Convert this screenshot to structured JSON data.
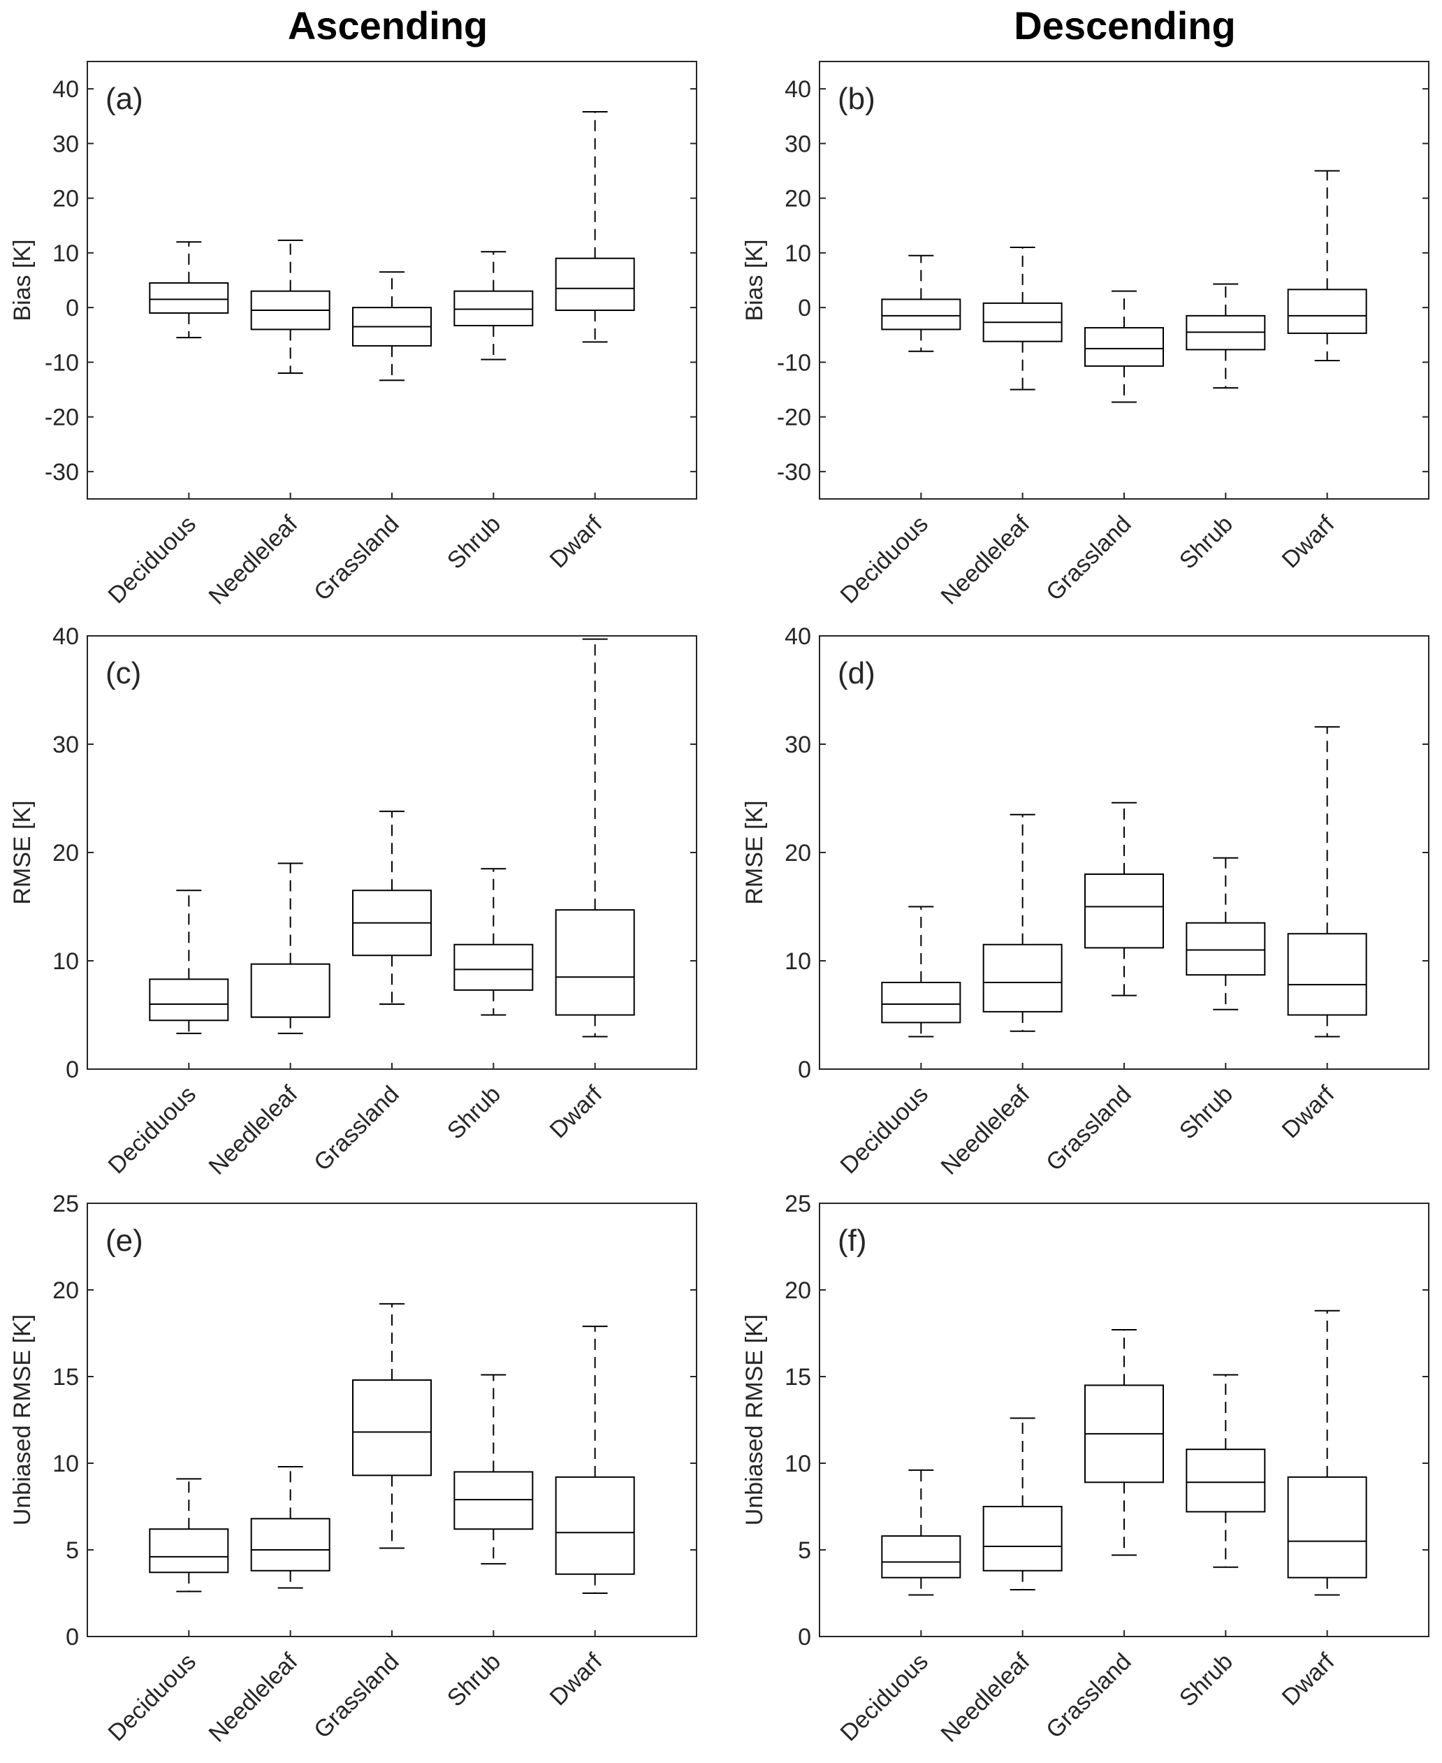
{
  "column_titles": [
    "Ascending",
    "Descending"
  ],
  "chart_data": [
    {
      "type": "boxplot",
      "panel": "(a)",
      "column": "Ascending",
      "ylabel": "Bias [K]",
      "ylim": [
        -35,
        45
      ],
      "yticks": [
        -30,
        -20,
        -10,
        0,
        10,
        20,
        30,
        40
      ],
      "categories": [
        "Deciduous",
        "Needleleaf",
        "Grassland",
        "Shrub",
        "Dwarf"
      ],
      "boxes": [
        {
          "whisker_low": -5.5,
          "q1": -1,
          "median": 1.5,
          "q3": 4.5,
          "whisker_high": 12
        },
        {
          "whisker_low": -12,
          "q1": -4,
          "median": -0.5,
          "q3": 3,
          "whisker_high": 12.3
        },
        {
          "whisker_low": -13.3,
          "q1": -7,
          "median": -3.5,
          "q3": 0,
          "whisker_high": 6.5
        },
        {
          "whisker_low": -9.5,
          "q1": -3.3,
          "median": -0.3,
          "q3": 3,
          "whisker_high": 10.2
        },
        {
          "whisker_low": -6.3,
          "q1": -0.5,
          "median": 3.5,
          "q3": 9,
          "whisker_high": 35.8
        }
      ]
    },
    {
      "type": "boxplot",
      "panel": "(b)",
      "column": "Descending",
      "ylabel": "Bias [K]",
      "ylim": [
        -35,
        45
      ],
      "yticks": [
        -30,
        -20,
        -10,
        0,
        10,
        20,
        30,
        40
      ],
      "categories": [
        "Deciduous",
        "Needleleaf",
        "Grassland",
        "Shrub",
        "Dwarf"
      ],
      "boxes": [
        {
          "whisker_low": -8,
          "q1": -4,
          "median": -1.5,
          "q3": 1.5,
          "whisker_high": 9.5
        },
        {
          "whisker_low": -15,
          "q1": -6.2,
          "median": -2.7,
          "q3": 0.8,
          "whisker_high": 11
        },
        {
          "whisker_low": -17.3,
          "q1": -10.7,
          "median": -7.5,
          "q3": -3.7,
          "whisker_high": 3
        },
        {
          "whisker_low": -14.7,
          "q1": -7.7,
          "median": -4.5,
          "q3": -1.5,
          "whisker_high": 4.3
        },
        {
          "whisker_low": -9.7,
          "q1": -4.7,
          "median": -1.5,
          "q3": 3.3,
          "whisker_high": 25
        }
      ]
    },
    {
      "type": "boxplot",
      "panel": "(c)",
      "column": "Ascending",
      "ylabel": "RMSE [K]",
      "ylim": [
        0,
        40
      ],
      "yticks": [
        0,
        10,
        20,
        30,
        40
      ],
      "categories": [
        "Deciduous",
        "Needleleaf",
        "Grassland",
        "Shrub",
        "Dwarf"
      ],
      "boxes": [
        {
          "whisker_low": 3.3,
          "q1": 4.5,
          "median": 6,
          "q3": 8.3,
          "whisker_high": 16.5
        },
        {
          "whisker_low": 3.3,
          "q1": 4.8,
          "median": 4.8,
          "q3": 9.7,
          "whisker_high": 19
        },
        {
          "whisker_low": 6,
          "q1": 10.5,
          "median": 13.5,
          "q3": 16.5,
          "whisker_high": 23.8
        },
        {
          "whisker_low": 5,
          "q1": 7.3,
          "median": 9.2,
          "q3": 11.5,
          "whisker_high": 18.5
        },
        {
          "whisker_low": 3,
          "q1": 5,
          "median": 8.5,
          "q3": 14.7,
          "whisker_high": 39.7
        }
      ]
    },
    {
      "type": "boxplot",
      "panel": "(d)",
      "column": "Descending",
      "ylabel": "RMSE [K]",
      "ylim": [
        0,
        40
      ],
      "yticks": [
        0,
        10,
        20,
        30,
        40
      ],
      "categories": [
        "Deciduous",
        "Needleleaf",
        "Grassland",
        "Shrub",
        "Dwarf"
      ],
      "boxes": [
        {
          "whisker_low": 3,
          "q1": 4.3,
          "median": 6,
          "q3": 8,
          "whisker_high": 15
        },
        {
          "whisker_low": 3.5,
          "q1": 5.3,
          "median": 8,
          "q3": 11.5,
          "whisker_high": 23.5
        },
        {
          "whisker_low": 6.8,
          "q1": 11.2,
          "median": 15,
          "q3": 18,
          "whisker_high": 24.6
        },
        {
          "whisker_low": 5.5,
          "q1": 8.7,
          "median": 11,
          "q3": 13.5,
          "whisker_high": 19.5
        },
        {
          "whisker_low": 3,
          "q1": 5,
          "median": 7.8,
          "q3": 12.5,
          "whisker_high": 31.6
        }
      ]
    },
    {
      "type": "boxplot",
      "panel": "(e)",
      "column": "Ascending",
      "ylabel": "Unbiased RMSE  [K]",
      "ylim": [
        0,
        25
      ],
      "yticks": [
        0,
        5,
        10,
        15,
        20,
        25
      ],
      "categories": [
        "Deciduous",
        "Needleleaf",
        "Grassland",
        "Shrub",
        "Dwarf"
      ],
      "boxes": [
        {
          "whisker_low": 2.6,
          "q1": 3.7,
          "median": 4.6,
          "q3": 6.2,
          "whisker_high": 9.1
        },
        {
          "whisker_low": 2.8,
          "q1": 3.8,
          "median": 5,
          "q3": 6.8,
          "whisker_high": 9.8
        },
        {
          "whisker_low": 5.1,
          "q1": 9.3,
          "median": 11.8,
          "q3": 14.8,
          "whisker_high": 19.2
        },
        {
          "whisker_low": 4.2,
          "q1": 6.2,
          "median": 7.9,
          "q3": 9.5,
          "whisker_high": 15.1
        },
        {
          "whisker_low": 2.5,
          "q1": 3.6,
          "median": 6,
          "q3": 9.2,
          "whisker_high": 17.9
        }
      ]
    },
    {
      "type": "boxplot",
      "panel": "(f)",
      "column": "Descending",
      "ylabel": "Unbiased RMSE  [K]",
      "ylim": [
        0,
        25
      ],
      "yticks": [
        0,
        5,
        10,
        15,
        20,
        25
      ],
      "categories": [
        "Deciduous",
        "Needleleaf",
        "Grassland",
        "Shrub",
        "Dwarf"
      ],
      "boxes": [
        {
          "whisker_low": 2.4,
          "q1": 3.4,
          "median": 4.3,
          "q3": 5.8,
          "whisker_high": 9.6
        },
        {
          "whisker_low": 2.7,
          "q1": 3.8,
          "median": 5.2,
          "q3": 7.5,
          "whisker_high": 12.6
        },
        {
          "whisker_low": 4.7,
          "q1": 8.9,
          "median": 11.7,
          "q3": 14.5,
          "whisker_high": 17.7
        },
        {
          "whisker_low": 4,
          "q1": 7.2,
          "median": 8.9,
          "q3": 10.8,
          "whisker_high": 15.1
        },
        {
          "whisker_low": 2.4,
          "q1": 3.4,
          "median": 5.5,
          "q3": 9.2,
          "whisker_high": 18.8
        }
      ]
    }
  ]
}
